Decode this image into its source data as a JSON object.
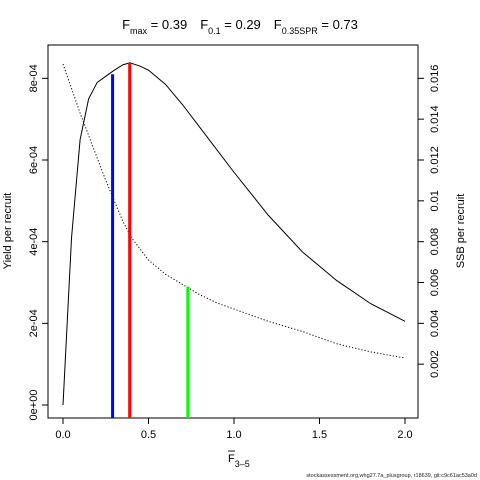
{
  "chart_data": {
    "type": "line",
    "title": {
      "parts": [
        {
          "base": "F",
          "sub": "max",
          "value": " = 0.39"
        },
        {
          "base": "F",
          "sub": "0.1",
          "value": " = 0.29"
        },
        {
          "base": "F",
          "sub": "0.35SPR",
          "value": " = 0.73"
        }
      ]
    },
    "xlabel": {
      "base": "F",
      "sub": "3–5",
      "overbar": true
    },
    "ylabel_left": "Yield per recruit",
    "ylabel_right": "SSB per recruit",
    "xlim": [
      0,
      2
    ],
    "ylim_left": [
      0,
      0.00084
    ],
    "ylim_right": [
      0,
      0.0168
    ],
    "x_ticks": [
      0,
      0.5,
      1,
      1.5,
      2
    ],
    "x_tick_labels": [
      "0.0",
      "0.5",
      "1.0",
      "1.5",
      "2.0"
    ],
    "y_left_ticks": [
      0,
      0.0002,
      0.0004,
      0.0006,
      0.0008
    ],
    "y_left_tick_labels": [
      "0e+00",
      "2e-04",
      "4e-04",
      "6e-04",
      "8e-04"
    ],
    "y_right_ticks": [
      0.002,
      0.004,
      0.006,
      0.008,
      0.01,
      0.012,
      0.014,
      0.016
    ],
    "y_right_tick_labels": [
      "0.002",
      "0.004",
      "0.006",
      "0.008",
      "0.01",
      "0.012",
      "0.014",
      "0.016"
    ],
    "series": [
      {
        "axis": "left",
        "style": "solid",
        "color": "#000000",
        "x": [
          0,
          0.05,
          0.1,
          0.15,
          0.2,
          0.25,
          0.3,
          0.35,
          0.39,
          0.45,
          0.5,
          0.6,
          0.7,
          0.8,
          0.9,
          1.0,
          1.2,
          1.4,
          1.6,
          1.8,
          2.0
        ],
        "y": [
          0.0,
          0.00041,
          0.00065,
          0.00075,
          0.00079,
          0.000805,
          0.00082,
          0.000833,
          0.000838,
          0.00083,
          0.00082,
          0.000785,
          0.000735,
          0.00068,
          0.000625,
          0.00057,
          0.000465,
          0.000375,
          0.000305,
          0.000248,
          0.000205
        ]
      },
      {
        "axis": "right",
        "style": "dotted",
        "color": "#000000",
        "x": [
          0,
          0.05,
          0.1,
          0.15,
          0.2,
          0.25,
          0.3,
          0.35,
          0.4,
          0.5,
          0.6,
          0.7,
          0.8,
          0.9,
          1.0,
          1.2,
          1.4,
          1.6,
          1.8,
          2.0
        ],
        "y": [
          0.0167,
          0.0155,
          0.0143,
          0.0132,
          0.0121,
          0.011,
          0.01,
          0.009,
          0.0082,
          0.0071,
          0.0064,
          0.0059,
          0.0054,
          0.005,
          0.0047,
          0.0041,
          0.0036,
          0.003,
          0.0026,
          0.0023
        ]
      }
    ],
    "markers": [
      {
        "name": "F0.1",
        "x": 0.29,
        "color": "#0000ff",
        "axis": "left",
        "y_top": 0.00081
      },
      {
        "name": "Fmax",
        "x": 0.39,
        "color": "#ff0000",
        "axis": "left",
        "y_top": 0.000838
      },
      {
        "name": "F0.35SPR",
        "x": 0.73,
        "color": "#00ff00",
        "axis": "right",
        "y_top": 0.0058
      }
    ],
    "grid": false,
    "legend": "none"
  },
  "footer": "stockassessment.org,whg27.7a_plusgroup, r18639, git:c9c61ac53a0d"
}
